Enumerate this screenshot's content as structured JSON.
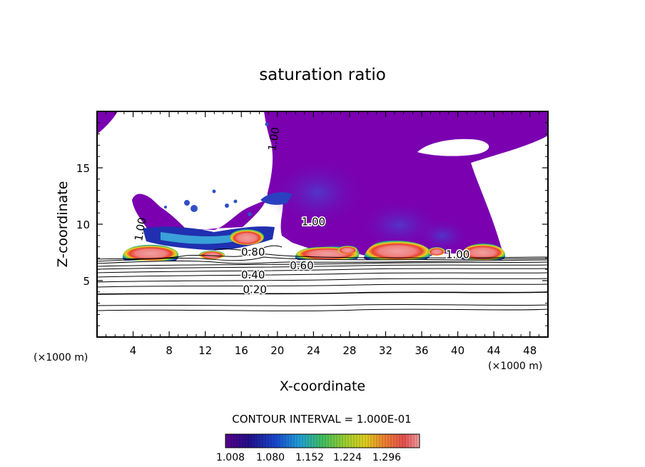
{
  "chart_data": {
    "type": "heatmap",
    "title": "saturation ratio",
    "xlabel": "X-coordinate",
    "ylabel": "Z-coordinate",
    "x_unit_left": "(×1000 m)",
    "x_unit_right": "(×1000 m)",
    "xlim": [
      0,
      50
    ],
    "ylim": [
      0,
      20
    ],
    "x_ticks": [
      4,
      8,
      12,
      16,
      20,
      24,
      28,
      32,
      36,
      40,
      44,
      48
    ],
    "y_ticks": [
      5,
      10,
      15
    ],
    "contour_interval_text": "CONTOUR INTERVAL = 1.000E-01",
    "colorbar_labels": [
      "1.008",
      "1.080",
      "1.152",
      "1.224",
      "1.296"
    ],
    "colorbar_range": [
      1.008,
      1.33
    ],
    "contour_labels": [
      {
        "text": "0.20",
        "x": 17.5,
        "z": 3.9
      },
      {
        "text": "0.40",
        "x": 17.3,
        "z": 5.2
      },
      {
        "text": "0.60",
        "x": 22.7,
        "z": 6.0
      },
      {
        "text": "0.80",
        "x": 17.3,
        "z": 7.2
      },
      {
        "text": "1.00",
        "x": 24.0,
        "z": 9.9
      },
      {
        "text": "1.00",
        "x": 40.0,
        "z": 7.0
      },
      {
        "text": "1.00",
        "x": 5.2,
        "z": 9.5
      },
      {
        "text": "1.00",
        "x": 20.0,
        "z": 17.5
      }
    ],
    "supersaturated_cells": [
      {
        "x_range": [
          2.8,
          8.2
        ],
        "z_range": [
          6.9,
          8.0
        ],
        "peak": 1.29
      },
      {
        "x_range": [
          22.0,
          29.2
        ],
        "z_range": [
          6.9,
          8.0
        ],
        "peak": 1.22
      },
      {
        "x_range": [
          29.8,
          37.2
        ],
        "z_range": [
          6.9,
          8.5
        ],
        "peak": 1.3
      },
      {
        "x_range": [
          38.8,
          44.8
        ],
        "z_range": [
          6.9,
          8.3
        ],
        "peak": 1.29
      },
      {
        "x_range": [
          14.0,
          20.0
        ],
        "z_range": [
          8.3,
          9.8
        ],
        "peak": 1.3
      }
    ]
  }
}
